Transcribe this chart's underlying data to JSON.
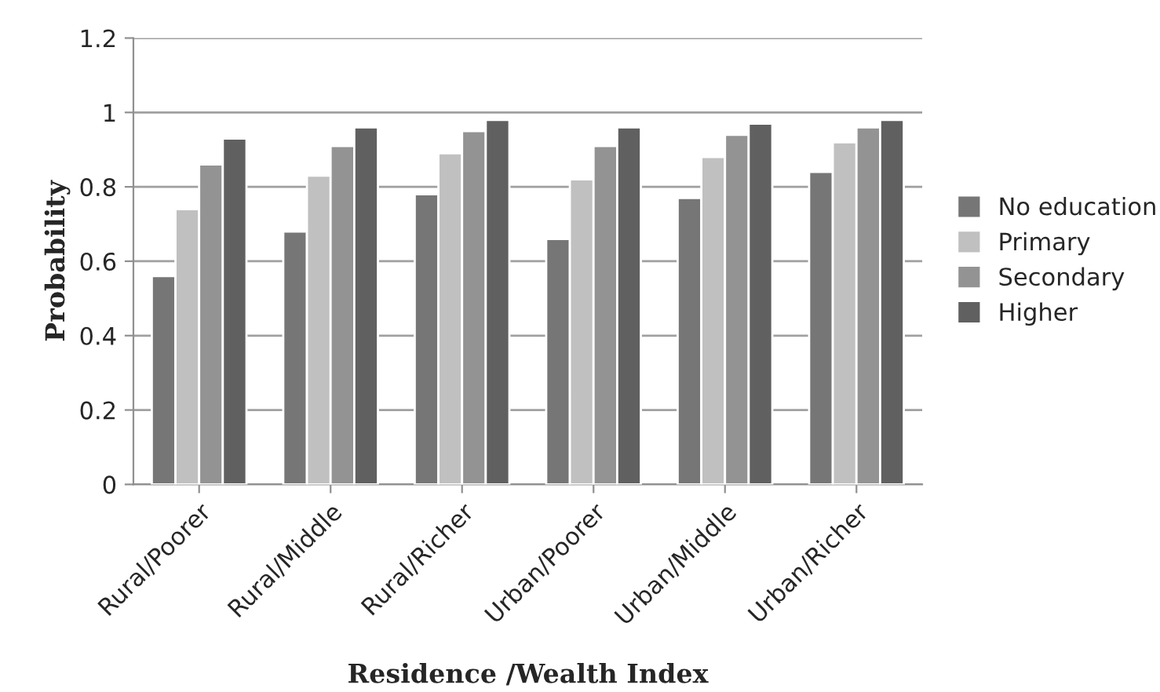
{
  "chart_data": {
    "type": "bar",
    "xlabel": "Residence /Wealth Index",
    "ylabel": "Probability",
    "categories": [
      "Rural/Poorer",
      "Rural/Middle",
      "Rural/Richer",
      "Urban/Poorer",
      "Urban/Middle",
      "Urban/Richer"
    ],
    "series": [
      {
        "name": "No education",
        "color": "#767676",
        "values": [
          0.56,
          0.68,
          0.78,
          0.66,
          0.77,
          0.84
        ]
      },
      {
        "name": "Primary",
        "color": "#c0c0c0",
        "values": [
          0.74,
          0.83,
          0.89,
          0.82,
          0.88,
          0.92
        ]
      },
      {
        "name": "Secondary",
        "color": "#939393",
        "values": [
          0.86,
          0.91,
          0.95,
          0.91,
          0.94,
          0.96
        ]
      },
      {
        "name": "Higher",
        "color": "#606060",
        "values": [
          0.93,
          0.96,
          0.98,
          0.96,
          0.97,
          0.98
        ]
      }
    ],
    "ylim": [
      0,
      1.2
    ],
    "yticks": [
      0,
      0.2,
      0.4,
      0.6,
      0.8,
      1,
      1.2
    ],
    "grid": "y",
    "legend": "right"
  }
}
